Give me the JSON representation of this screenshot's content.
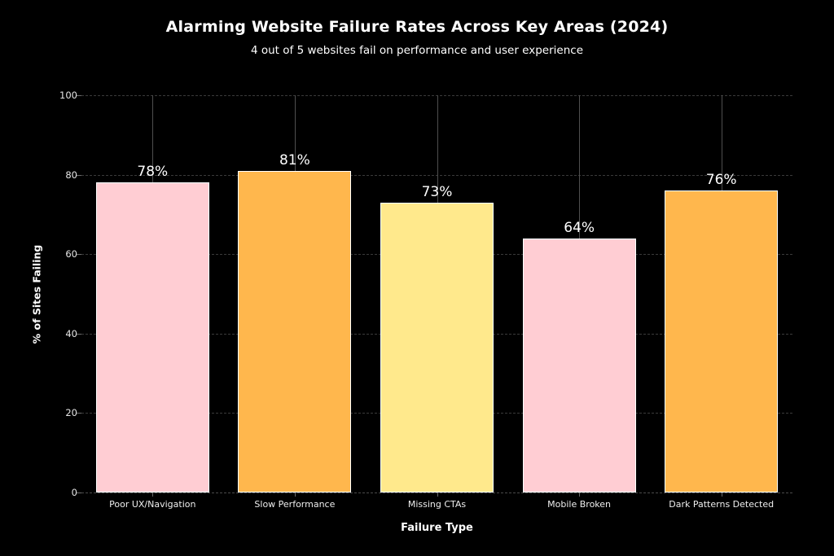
{
  "chart_data": {
    "type": "bar",
    "title": "Alarming Website Failure Rates Across Key Areas (2024)",
    "subtitle": "4 out of 5 websites fail on performance and user experience",
    "categories": [
      "Poor UX/Navigation",
      "Slow Performance",
      "Missing CTAs",
      "Mobile Broken",
      "Dark Patterns Detected"
    ],
    "values": [
      78,
      81,
      73,
      64,
      76
    ],
    "value_labels": [
      "78%",
      "81%",
      "73%",
      "64%",
      "76%"
    ],
    "bar_colors": [
      "#FFCDD3",
      "#FFB74D",
      "#FFE98C",
      "#FFCDD3",
      "#FFB74D"
    ],
    "bar_edge_color": "#FFFFFF",
    "xlabel": "Failure Type",
    "ylabel": "% of Sites Failing",
    "ylim": [
      0,
      100
    ],
    "yticks": [
      0,
      20,
      40,
      60,
      80,
      100
    ],
    "grid": true,
    "background_color": "#000000",
    "text_color": "#FFFFFF",
    "legend": false
  }
}
